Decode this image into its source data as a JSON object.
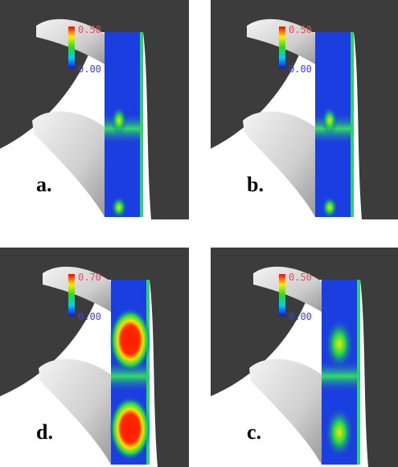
{
  "panels": [
    {
      "label": "a.",
      "scale_max": "0.50",
      "scale_min": "0.00"
    },
    {
      "label": "b.",
      "scale_max": "0.50",
      "scale_min": "0.00"
    },
    {
      "label": "d.",
      "scale_max": "0.70",
      "scale_min": "0.00"
    },
    {
      "label": "c.",
      "scale_max": "0.50",
      "scale_min": "0.00"
    }
  ]
}
